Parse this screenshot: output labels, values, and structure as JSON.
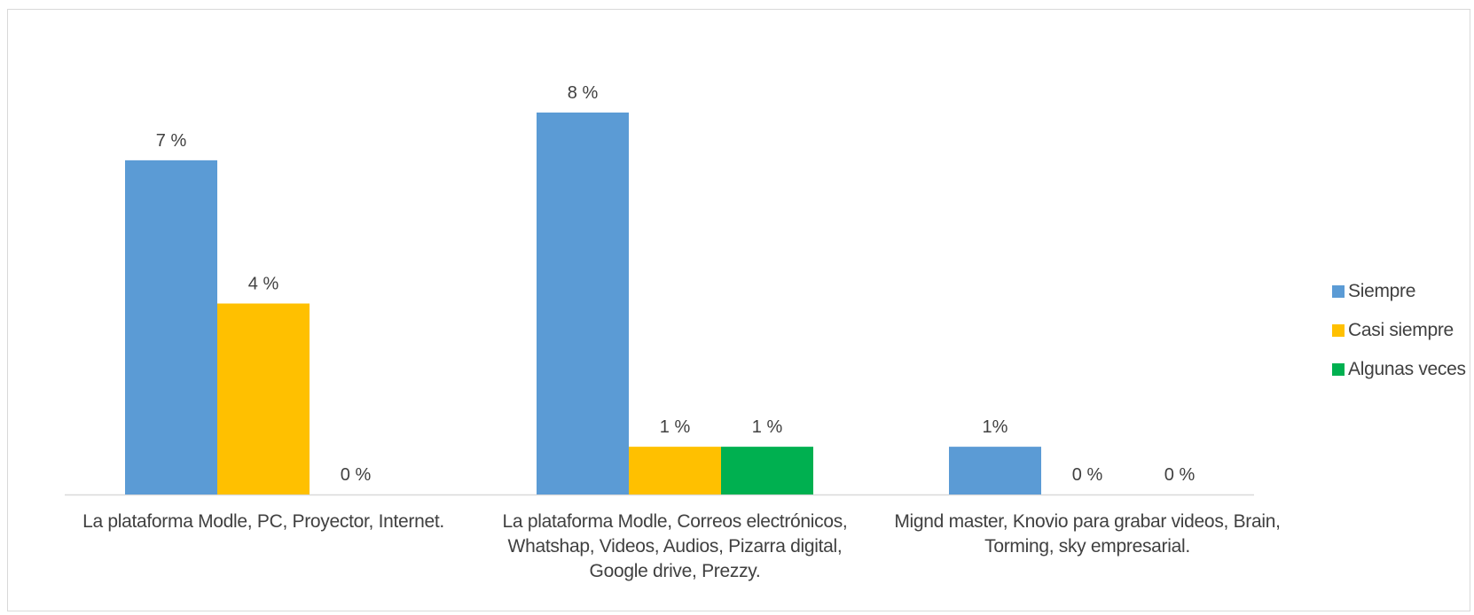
{
  "chart_data": {
    "type": "bar",
    "title": "",
    "xlabel": "",
    "ylabel": "",
    "categories": [
      [
        "La plataforma Modle, PC, Proyector, Internet."
      ],
      [
        "La plataforma Modle, Correos electrónicos,",
        "Whatshap, Videos, Audios, Pizarra digital,",
        "Google drive, Prezzy."
      ],
      [
        "Mignd master, Knovio para grabar videos, Brain,",
        "Torming, sky empresarial."
      ]
    ],
    "series": [
      {
        "name": "Siempre",
        "color": "#5b9bd5",
        "values": [
          7,
          8,
          1
        ],
        "labels": [
          "7 %",
          "8 %",
          "1%"
        ]
      },
      {
        "name": "Casi siempre",
        "color": "#ffc000",
        "values": [
          4,
          1,
          0
        ],
        "labels": [
          "4 %",
          "1 %",
          "0 %"
        ]
      },
      {
        "name": "Algunas veces",
        "color": "#00b050",
        "values": [
          0,
          1,
          0
        ],
        "labels": [
          "0 %",
          "1 %",
          "0 %"
        ]
      }
    ],
    "ylim": [
      0,
      8.5
    ],
    "grid": false,
    "legend_position": "right"
  }
}
